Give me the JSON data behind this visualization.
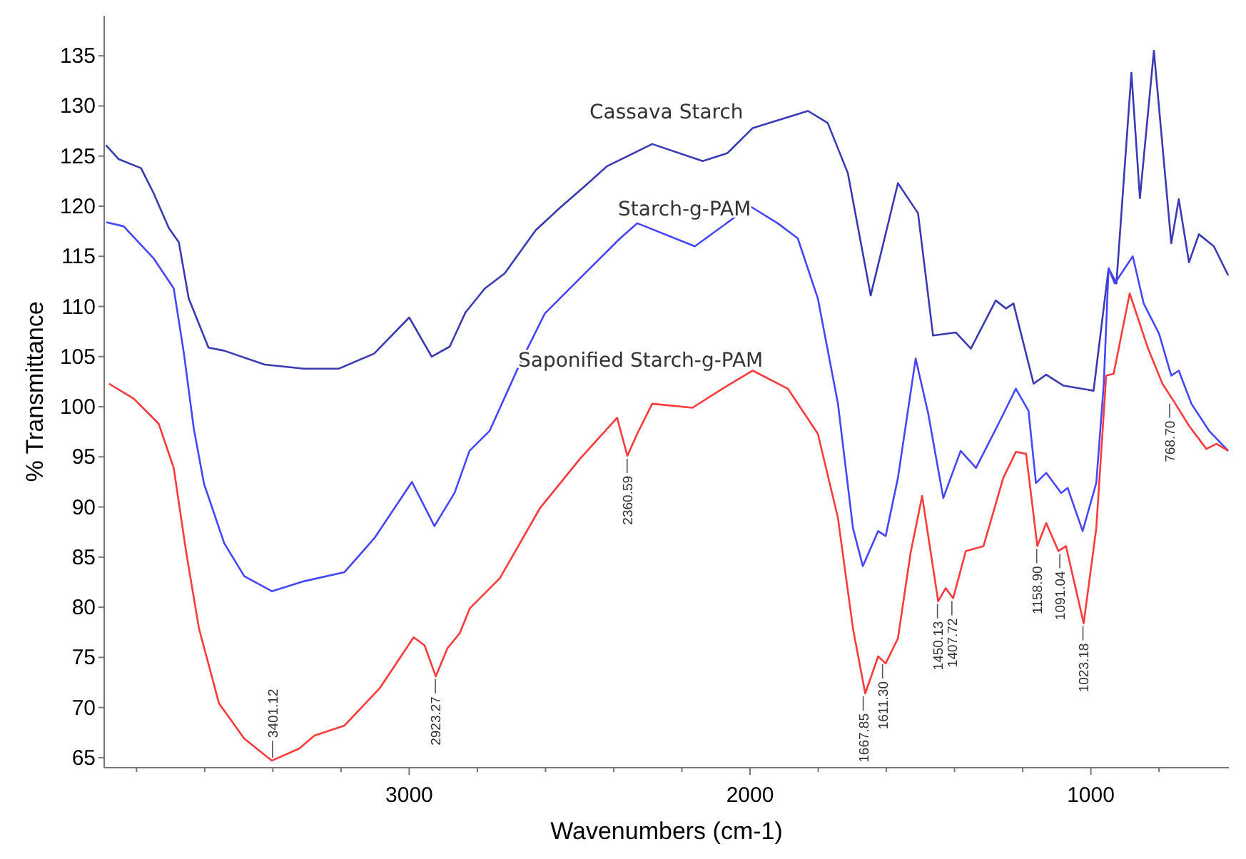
{
  "chart_data": {
    "type": "line",
    "xlabel": "Wavenumbers (cm-1)",
    "ylabel": "% Transmittance",
    "xlim": [
      3895,
      595
    ],
    "ylim": [
      64,
      139
    ],
    "xticks": [
      {
        "value": 3800,
        "label": null
      },
      {
        "value": 3600,
        "label": null
      },
      {
        "value": 3400,
        "label": null
      },
      {
        "value": 3200,
        "label": null
      },
      3000,
      {
        "value": 2800,
        "label": null
      },
      {
        "value": 2600,
        "label": null
      },
      {
        "value": 2400,
        "label": null
      },
      {
        "value": 2200,
        "label": null
      },
      2000,
      {
        "value": 1800,
        "label": null
      },
      {
        "value": 1600,
        "label": null
      },
      {
        "value": 1400,
        "label": null
      },
      {
        "value": 1200,
        "label": null
      },
      1000,
      {
        "value": 800,
        "label": null
      }
    ],
    "yticks": [
      65,
      70,
      75,
      80,
      85,
      90,
      95,
      100,
      105,
      110,
      115,
      120,
      125,
      130,
      135
    ],
    "grid": false,
    "marker": "none",
    "line_style": "solid",
    "series": [
      {
        "name": "Cassava Starch",
        "color": "#3a3ab4",
        "x": [
          3890,
          3853,
          3787,
          3750,
          3705,
          3676,
          3647,
          3589,
          3544,
          3424,
          3309,
          3206,
          3103,
          3000,
          2934,
          2881,
          2835,
          2778,
          2720,
          2629,
          2559,
          2485,
          2419,
          2287,
          2139,
          2066,
          1992,
          1830,
          1772,
          1713,
          1646,
          1566,
          1507,
          1463,
          1396,
          1352,
          1279,
          1249,
          1227,
          1168,
          1131,
          1080,
          992,
          948,
          925,
          881,
          856,
          815,
          764,
          742,
          712,
          683,
          639,
          597
        ],
        "values": [
          126.1,
          124.7,
          123.8,
          121.3,
          117.8,
          116.4,
          110.8,
          105.9,
          105.6,
          104.2,
          103.8,
          103.8,
          105.3,
          108.9,
          105.0,
          106.0,
          109.4,
          111.8,
          113.3,
          117.6,
          119.8,
          122.0,
          124.0,
          126.2,
          124.5,
          125.3,
          127.8,
          129.5,
          128.3,
          123.3,
          111.1,
          122.3,
          119.3,
          107.1,
          107.4,
          105.8,
          110.6,
          109.8,
          110.3,
          102.3,
          103.2,
          102.1,
          101.6,
          113.8,
          112.3,
          133.3,
          120.8,
          135.5,
          116.3,
          120.7,
          114.4,
          117.2,
          116.0,
          113.1
        ]
      },
      {
        "name": "Starch-g-PAM",
        "color": "#4646ff",
        "x": [
          3889,
          3838,
          3750,
          3691,
          3661,
          3632,
          3602,
          3543,
          3484,
          3403,
          3308,
          3190,
          3102,
          2992,
          2926,
          2867,
          2823,
          2764,
          2675,
          2602,
          2499,
          2381,
          2331,
          2162,
          2000,
          1919,
          1860,
          1801,
          1742,
          1698,
          1669,
          1624,
          1602,
          1566,
          1514,
          1477,
          1433,
          1382,
          1337,
          1271,
          1220,
          1183,
          1161,
          1131,
          1087,
          1068,
          1024,
          984,
          962,
          948,
          930,
          877,
          845,
          800,
          764,
          742,
          705,
          653,
          597
        ],
        "values": [
          118.4,
          118.0,
          114.8,
          111.8,
          105.3,
          97.8,
          92.3,
          86.4,
          83.1,
          81.6,
          82.6,
          83.5,
          86.9,
          92.5,
          88.1,
          91.4,
          95.6,
          97.6,
          104.3,
          109.3,
          112.8,
          116.8,
          118.3,
          116.0,
          120.0,
          118.3,
          116.8,
          110.8,
          100.3,
          87.9,
          84.1,
          87.6,
          87.1,
          92.9,
          104.8,
          99.3,
          90.9,
          95.6,
          93.9,
          98.3,
          101.8,
          99.6,
          92.4,
          93.4,
          91.4,
          91.9,
          87.6,
          92.4,
          102.3,
          113.8,
          112.3,
          115.0,
          110.3,
          107.3,
          103.1,
          103.6,
          100.3,
          97.6,
          95.6
        ]
      },
      {
        "name": "Saponified Starch-g-PAM",
        "color": "#ff3a3a",
        "x": [
          3881,
          3808,
          3735,
          3691,
          3654,
          3617,
          3558,
          3484,
          3403,
          3323,
          3278,
          3190,
          3087,
          2987,
          2955,
          2922,
          2888,
          2852,
          2822,
          2734,
          2616,
          2499,
          2390,
          2360,
          2331,
          2287,
          2169,
          2081,
          1992,
          1889,
          1801,
          1742,
          1698,
          1662,
          1624,
          1602,
          1566,
          1529,
          1495,
          1448,
          1426,
          1404,
          1367,
          1315,
          1257,
          1220,
          1190,
          1157,
          1131,
          1095,
          1073,
          1021,
          984,
          955,
          933,
          886,
          832,
          790,
          752,
          712,
          661,
          631,
          597
        ],
        "values": [
          102.3,
          100.8,
          98.3,
          93.9,
          85.4,
          77.9,
          70.4,
          66.9,
          64.7,
          65.9,
          67.2,
          68.2,
          71.9,
          77.0,
          76.2,
          73.1,
          75.9,
          77.4,
          79.9,
          82.9,
          89.9,
          94.8,
          98.9,
          95.1,
          97.3,
          100.3,
          99.9,
          101.8,
          103.6,
          101.8,
          97.3,
          88.9,
          77.9,
          71.4,
          75.1,
          74.4,
          76.9,
          85.4,
          91.1,
          80.6,
          81.9,
          80.9,
          85.6,
          86.1,
          92.9,
          95.5,
          95.3,
          86.1,
          88.4,
          85.6,
          86.1,
          78.4,
          87.9,
          103.1,
          103.3,
          111.3,
          105.8,
          102.3,
          100.3,
          98.1,
          95.8,
          96.3,
          95.6
        ]
      }
    ],
    "annotations": [
      {
        "text": "3401.12",
        "x": 3401.12,
        "y": 64.7
      },
      {
        "text": "2923.27",
        "x": 2923.27,
        "y": 73.1
      },
      {
        "text": "2360.59",
        "x": 2360.59,
        "y": 95.1
      },
      {
        "text": "1667.85",
        "x": 1667.85,
        "y": 71.4
      },
      {
        "text": "1611.30",
        "x": 1611.3,
        "y": 74.6
      },
      {
        "text": "1450.13",
        "x": 1450.13,
        "y": 80.6
      },
      {
        "text": "1407.72",
        "x": 1407.72,
        "y": 80.9
      },
      {
        "text": "1158.90",
        "x": 1158.9,
        "y": 86.1
      },
      {
        "text": "1091.04",
        "x": 1091.04,
        "y": 85.6
      },
      {
        "text": "1023.18",
        "x": 1023.18,
        "y": 78.4
      },
      {
        "text": "768.70",
        "x": 768.7,
        "y": 100.6
      }
    ]
  }
}
